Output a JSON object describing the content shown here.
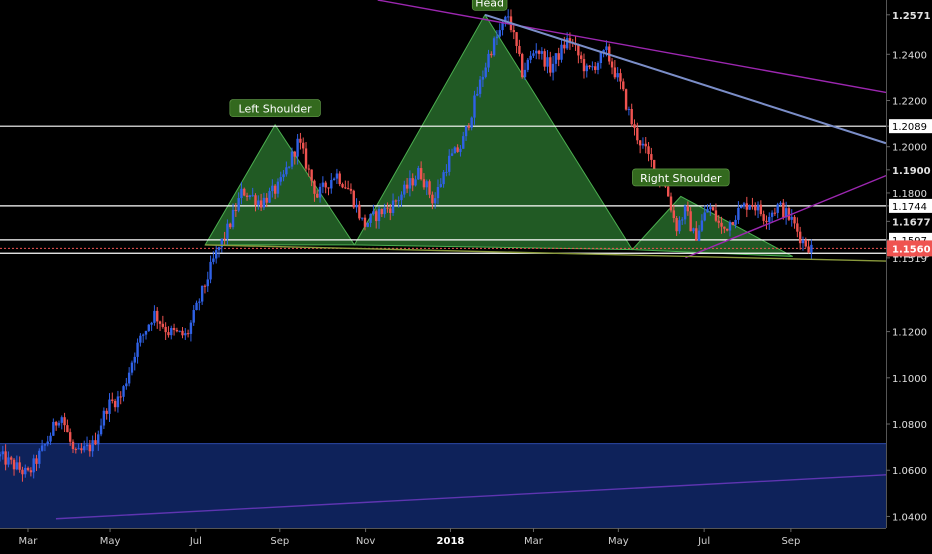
{
  "chart_data": {
    "type": "candlestick",
    "title": "",
    "xlabel": "",
    "ylabel": "",
    "ylim": [
      1.035,
      1.2635
    ],
    "x_ticks": [
      "Mar",
      "May",
      "Jul",
      "Sep",
      "Nov",
      "2018",
      "Mar",
      "May",
      "Jul",
      "Sep"
    ],
    "y_ticks": [
      {
        "value": 1.2571,
        "label": "1.2571"
      },
      {
        "value": 1.24,
        "label": "1.2400"
      },
      {
        "value": 1.22,
        "label": "1.2200"
      },
      {
        "value": 1.2089,
        "label": "1.2089"
      },
      {
        "value": 1.2,
        "label": "1.2000"
      },
      {
        "value": 1.19,
        "label": "1.1900"
      },
      {
        "value": 1.18,
        "label": "1.1800"
      },
      {
        "value": 1.1744,
        "label": "1.1744"
      },
      {
        "value": 1.1677,
        "label": "1.1677"
      },
      {
        "value": 1.1597,
        "label": "1.1597"
      },
      {
        "value": 1.156,
        "label": "1.1560"
      },
      {
        "value": 1.1539,
        "label": "1.1539"
      },
      {
        "value": 1.1519,
        "label": "1.1519"
      },
      {
        "value": 1.12,
        "label": "1.1200"
      },
      {
        "value": 1.1,
        "label": "1.1000"
      },
      {
        "value": 1.08,
        "label": "1.0800"
      },
      {
        "value": 1.06,
        "label": "1.0600"
      },
      {
        "value": 1.04,
        "label": "1.0400"
      }
    ],
    "price_boxes": {
      "last": {
        "value": 1.156,
        "label": "1.1560"
      },
      "bold": [
        "1.2571",
        "1.1900",
        "1.1677",
        "1.1539"
      ]
    },
    "horizontal_levels": [
      1.2089,
      1.1744,
      1.1597,
      1.1539
    ],
    "current_price_line": 1.156,
    "annotations": [
      {
        "text": "Left Shoulder",
        "x": 0.295,
        "y": 1.2165
      },
      {
        "text": "Head",
        "x": 0.525,
        "y": 1.2625
      },
      {
        "text": "Right Shoulder",
        "x": 0.73,
        "y": 1.1865
      }
    ],
    "pattern_triangles": [
      [
        [
          0.22,
          1.1575
        ],
        [
          0.295,
          1.2095
        ],
        [
          0.38,
          1.1575
        ]
      ],
      [
        [
          0.38,
          1.1575
        ],
        [
          0.52,
          1.2571
        ],
        [
          0.678,
          1.1555
        ]
      ],
      [
        [
          0.678,
          1.1555
        ],
        [
          0.73,
          1.1785
        ],
        [
          0.85,
          1.1525
        ]
      ]
    ],
    "trend_lines": [
      {
        "color": "#9c27b0",
        "from": [
          0.405,
          1.2635
        ],
        "to": [
          0.95,
          1.2235
        ]
      },
      {
        "color": "#7b8ec8",
        "from": [
          0.52,
          1.2571
        ],
        "to": [
          0.95,
          1.2015
        ]
      },
      {
        "color": "#9c27b0",
        "from": [
          0.735,
          1.152
        ],
        "to": [
          0.95,
          1.1875
        ]
      },
      {
        "color": "#8a9a3c",
        "from": [
          0.22,
          1.1575
        ],
        "to": [
          0.95,
          1.1505
        ]
      },
      {
        "color": "#5e35b1",
        "from": [
          0.06,
          1.039
        ],
        "to": [
          0.95,
          1.058
        ]
      }
    ],
    "zone": {
      "y_from": 1.035,
      "y_to": 1.0715
    },
    "price_path": [
      [
        0.0,
        1.066
      ],
      [
        0.03,
        1.058
      ],
      [
        0.05,
        1.072
      ],
      [
        0.065,
        1.085
      ],
      [
        0.08,
        1.066
      ],
      [
        0.1,
        1.071
      ],
      [
        0.115,
        1.088
      ],
      [
        0.13,
        1.092
      ],
      [
        0.145,
        1.112
      ],
      [
        0.165,
        1.128
      ],
      [
        0.18,
        1.12
      ],
      [
        0.2,
        1.118
      ],
      [
        0.215,
        1.135
      ],
      [
        0.23,
        1.152
      ],
      [
        0.245,
        1.165
      ],
      [
        0.26,
        1.181
      ],
      [
        0.28,
        1.176
      ],
      [
        0.3,
        1.183
      ],
      [
        0.32,
        1.2025
      ],
      [
        0.34,
        1.1785
      ],
      [
        0.36,
        1.1885
      ],
      [
        0.375,
        1.181
      ],
      [
        0.39,
        1.166
      ],
      [
        0.405,
        1.171
      ],
      [
        0.42,
        1.1745
      ],
      [
        0.435,
        1.1815
      ],
      [
        0.45,
        1.1895
      ],
      [
        0.465,
        1.176
      ],
      [
        0.48,
        1.1935
      ],
      [
        0.495,
        1.2005
      ],
      [
        0.51,
        1.221
      ],
      [
        0.525,
        1.241
      ],
      [
        0.545,
        1.257
      ],
      [
        0.56,
        1.232
      ],
      [
        0.575,
        1.243
      ],
      [
        0.59,
        1.234
      ],
      [
        0.61,
        1.247
      ],
      [
        0.63,
        1.232
      ],
      [
        0.65,
        1.241
      ],
      [
        0.665,
        1.227
      ],
      [
        0.68,
        1.207
      ],
      [
        0.7,
        1.192
      ],
      [
        0.715,
        1.1815
      ],
      [
        0.725,
        1.165
      ],
      [
        0.735,
        1.1725
      ],
      [
        0.745,
        1.1605
      ],
      [
        0.76,
        1.1745
      ],
      [
        0.775,
        1.1635
      ],
      [
        0.79,
        1.1715
      ],
      [
        0.805,
        1.1765
      ],
      [
        0.82,
        1.1695
      ],
      [
        0.835,
        1.1745
      ],
      [
        0.85,
        1.1675
      ],
      [
        0.86,
        1.1595
      ],
      [
        0.87,
        1.156
      ]
    ],
    "colors": {
      "up": "#2f61e6",
      "down": "#ef5350",
      "pattern_fill": "#2e7d32",
      "level": "#ffffff",
      "current_price": "#ef5350",
      "zone_fill": "#112a70",
      "label_bg": "#33691e"
    }
  }
}
